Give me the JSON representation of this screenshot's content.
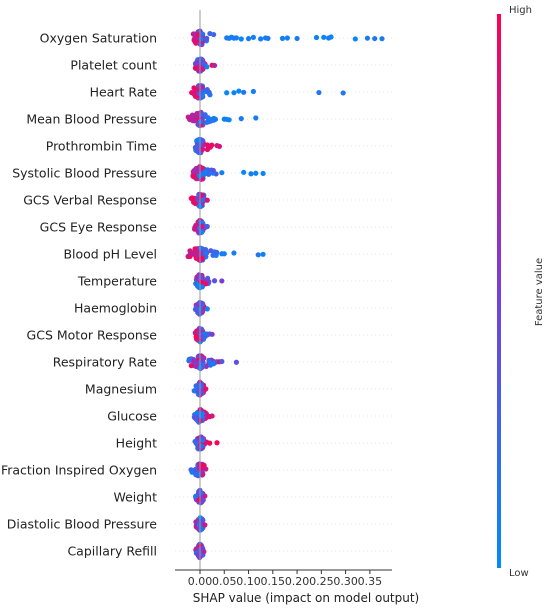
{
  "chart_data": {
    "type": "scatter",
    "subtype": "shap-beeswarm",
    "xlabel": "SHAP value (impact on model output)",
    "xlim": [
      -0.04,
      0.39
    ],
    "x_ticks": [
      {
        "value": 0.0,
        "label": "0.00"
      },
      {
        "value": 0.05,
        "label": "0.05"
      },
      {
        "value": 0.1,
        "label": "0.10"
      },
      {
        "value": 0.15,
        "label": "0.15"
      },
      {
        "value": 0.2,
        "label": "0.20"
      },
      {
        "value": 0.25,
        "label": "0.25"
      },
      {
        "value": 0.3,
        "label": "0.30"
      },
      {
        "value": 0.35,
        "label": "0.35"
      }
    ],
    "colorbar": {
      "title": "Feature value",
      "high_label": "High",
      "low_label": "Low",
      "high_color": "#ff0052",
      "low_color": "#008bfb",
      "mid_color": "#7a3ed8"
    },
    "grid": false,
    "features": [
      {
        "name": "Oxygen Saturation",
        "min": -0.015,
        "core_hi": 0.045,
        "tail": [
          0.055,
          0.06,
          0.065,
          0.07,
          0.075,
          0.085,
          0.1,
          0.11,
          0.125,
          0.135,
          0.14,
          0.17,
          0.18,
          0.2,
          0.24,
          0.255,
          0.265,
          0.27,
          0.32,
          0.345,
          0.36,
          0.375
        ],
        "color_skew": "low-right"
      },
      {
        "name": "Platelet count",
        "min": -0.01,
        "core_hi": 0.015,
        "tail": [
          0.025,
          0.03
        ],
        "color_skew": "mixed"
      },
      {
        "name": "Heart Rate",
        "min": -0.02,
        "core_hi": 0.03,
        "tail": [
          0.055,
          0.07,
          0.08,
          0.09,
          0.11,
          0.245,
          0.295
        ],
        "color_skew": "low-right"
      },
      {
        "name": "Mean Blood Pressure",
        "min": -0.025,
        "core_hi": 0.04,
        "tail": [
          0.05,
          0.055,
          0.06,
          0.085,
          0.115
        ],
        "color_skew": "low-right"
      },
      {
        "name": "Prothrombin Time",
        "min": -0.01,
        "core_hi": 0.025,
        "tail": [
          0.035,
          0.04
        ],
        "color_skew": "high-right"
      },
      {
        "name": "Systolic Blood Pressure",
        "min": -0.015,
        "core_hi": 0.035,
        "tail": [
          0.045,
          0.09,
          0.105,
          0.115,
          0.13
        ],
        "color_skew": "low-right"
      },
      {
        "name": "GCS Verbal Response",
        "min": -0.02,
        "core_hi": 0.01,
        "tail": [
          0.015
        ],
        "color_skew": "high-left"
      },
      {
        "name": "GCS Eye Response",
        "min": -0.012,
        "core_hi": 0.01,
        "tail": [
          0.015
        ],
        "color_skew": "high-left"
      },
      {
        "name": "Blood pH Level",
        "min": -0.025,
        "core_hi": 0.035,
        "tail": [
          0.045,
          0.05,
          0.07,
          0.12,
          0.13
        ],
        "color_skew": "low-right"
      },
      {
        "name": "Temperature",
        "min": -0.01,
        "core_hi": 0.02,
        "tail": [
          0.03,
          0.045
        ],
        "color_skew": "mixed"
      },
      {
        "name": "Haemoglobin",
        "min": -0.01,
        "core_hi": 0.01,
        "tail": [
          0.015
        ],
        "color_skew": "mixed"
      },
      {
        "name": "GCS Motor Response",
        "min": -0.01,
        "core_hi": 0.015,
        "tail": [
          0.02,
          0.025
        ],
        "color_skew": "high-left"
      },
      {
        "name": "Respiratory Rate",
        "min": -0.025,
        "core_hi": 0.03,
        "tail": [
          0.035,
          0.04,
          0.045,
          0.075
        ],
        "color_skew": "mixed"
      },
      {
        "name": "Magnesium",
        "min": -0.012,
        "core_hi": 0.01,
        "tail": [
          0.012
        ],
        "color_skew": "high-right"
      },
      {
        "name": "Glucose",
        "min": -0.012,
        "core_hi": 0.015,
        "tail": [
          0.02,
          0.025
        ],
        "color_skew": "high-right"
      },
      {
        "name": "Height",
        "min": -0.012,
        "core_hi": 0.015,
        "tail": [
          0.02,
          0.035
        ],
        "color_skew": "high-right"
      },
      {
        "name": "Fraction Inspired Oxygen",
        "min": -0.02,
        "core_hi": 0.01,
        "tail": [
          0.012
        ],
        "color_skew": "high-right"
      },
      {
        "name": "Weight",
        "min": -0.01,
        "core_hi": 0.008,
        "tail": [
          0.01
        ],
        "color_skew": "mixed"
      },
      {
        "name": "Diastolic Blood Pressure",
        "min": -0.01,
        "core_hi": 0.008,
        "tail": [
          0.01
        ],
        "color_skew": "mixed"
      },
      {
        "name": "Capillary Refill",
        "min": -0.01,
        "core_hi": 0.005,
        "tail": [
          0.008
        ],
        "color_skew": "mixed"
      }
    ]
  }
}
